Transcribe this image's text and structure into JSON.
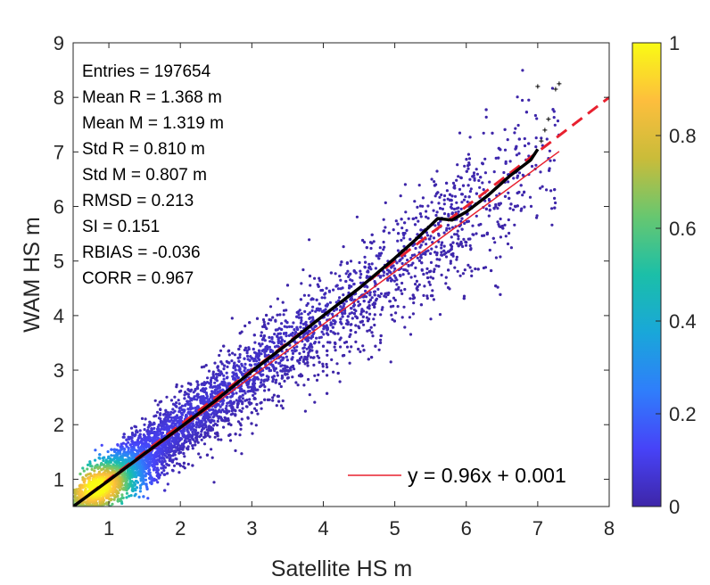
{
  "chart_data": {
    "type": "scatter",
    "title": "",
    "xlabel": "Satellite HS m",
    "ylabel": "WAM  HS m",
    "xlim": [
      0.5,
      8
    ],
    "ylim": [
      0.5,
      9
    ],
    "xticks": [
      "1",
      "2",
      "3",
      "4",
      "5",
      "6",
      "7",
      "8"
    ],
    "yticks": [
      "1",
      "2",
      "3",
      "4",
      "5",
      "6",
      "7",
      "8",
      "9"
    ],
    "grid": false,
    "stats": [
      "Entries = 197654",
      "Mean R = 1.368 m",
      "Mean M = 1.319 m",
      "Std R = 0.810 m",
      "Std M = 0.807 m",
      "RMSD = 0.213",
      "SI = 0.151",
      "RBIAS = -0.036",
      "CORR = 0.967"
    ],
    "legend": {
      "label": "y = 0.96x + 0.001",
      "position": "bottom-right",
      "color": "#e8212f"
    },
    "fit_line": {
      "slope": 0.96,
      "intercept": 0.001,
      "x_range": [
        0.5,
        7.3
      ],
      "color": "#e8212f"
    },
    "identity_line": {
      "x_range": [
        0.5,
        8
      ],
      "color": "#e8212f",
      "style": "dashed"
    },
    "qq_points": {
      "x": [
        0.5,
        1.0,
        1.5,
        2.0,
        2.5,
        3.0,
        3.5,
        4.0,
        4.5,
        5.0,
        5.3,
        5.5,
        5.6,
        5.8,
        6.0,
        6.3,
        6.6,
        6.9,
        7.0
      ],
      "y": [
        0.5,
        0.98,
        1.47,
        1.95,
        2.45,
        2.98,
        3.48,
        4.0,
        4.5,
        5.05,
        5.4,
        5.65,
        5.78,
        5.75,
        5.9,
        6.2,
        6.55,
        6.85,
        7.05
      ],
      "color": "#000000"
    },
    "qq_tail": {
      "x": [
        7.05,
        7.1,
        7.15,
        7.0,
        7.25,
        7.3
      ],
      "y": [
        7.2,
        7.4,
        7.6,
        8.2,
        8.15,
        8.25
      ],
      "color": "#000000"
    },
    "colorbar": {
      "ticks": [
        "0",
        "0.2",
        "0.4",
        "0.6",
        "0.8",
        "1"
      ],
      "range": [
        0,
        1
      ],
      "colormap": [
        "#3e26a8",
        "#4743f8",
        "#2f7efb",
        "#19a7d9",
        "#1bbfa8",
        "#67c770",
        "#c9bc3a",
        "#fdbe3d",
        "#f9fb14"
      ]
    },
    "density_scatter": {
      "description_kind": "density-colored points along y = x",
      "colormap": "parula"
    }
  }
}
